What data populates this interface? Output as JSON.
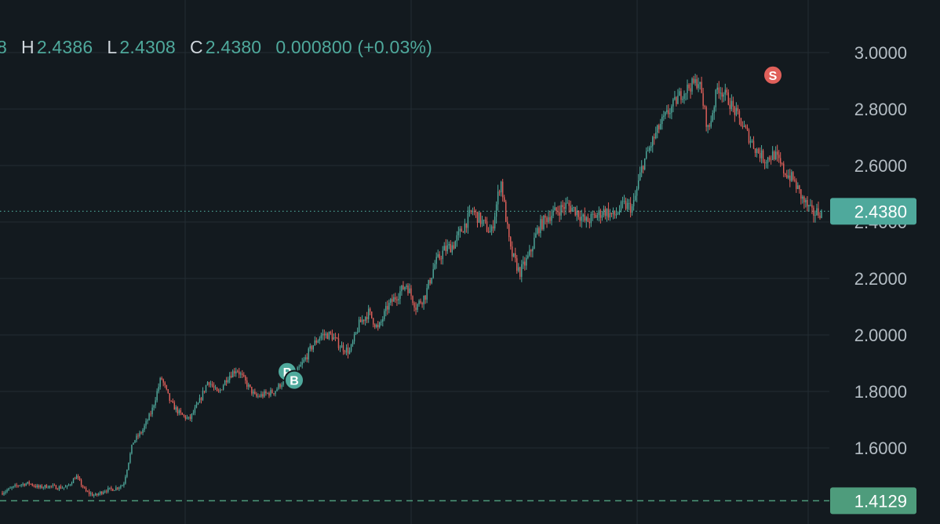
{
  "legend": {
    "open_value_tail": "8",
    "high_label": "H",
    "high_value": "2.4386",
    "low_label": "L",
    "low_value": "2.4308",
    "close_label": "C",
    "close_value": "2.4380",
    "change": "0.000800 (+0.03%)"
  },
  "price_axis": {
    "ticks": [
      "1.6000",
      "1.8000",
      "2.0000",
      "2.2000",
      "2.4000",
      "2.6000",
      "2.8000",
      "3.0000"
    ],
    "last_price_label": "2.4380",
    "reference_price_label": "1.4129"
  },
  "markers": [
    {
      "letter": "P",
      "price": 1.87
    },
    {
      "letter": "B",
      "price": 1.84
    },
    {
      "letter": "S",
      "price": 2.92
    }
  ],
  "colors": {
    "background": "#131a1f",
    "up": "#4fa99c",
    "down": "#e0605a",
    "grid": "#232c33",
    "axis_text": "#b4bdc4",
    "last_price_bg": "#4fa99c",
    "reference_bg": "#4e9c7c"
  },
  "chart_data": {
    "type": "candlestick",
    "y_scale": "linear",
    "ylim": [
      1.45,
      3.1
    ],
    "last_price": 2.438,
    "reference_price": 1.4129,
    "grid": true,
    "price_path": [
      1.44,
      1.455,
      1.47,
      1.475,
      1.46,
      1.465,
      1.46,
      1.46,
      1.5,
      1.445,
      1.43,
      1.45,
      1.455,
      1.47,
      1.62,
      1.66,
      1.73,
      1.85,
      1.76,
      1.72,
      1.7,
      1.76,
      1.84,
      1.79,
      1.85,
      1.88,
      1.83,
      1.78,
      1.79,
      1.8,
      1.84,
      1.85,
      1.9,
      1.96,
      2.0,
      2.0,
      1.96,
      1.94,
      2.04,
      2.08,
      2.02,
      2.1,
      2.14,
      2.18,
      2.1,
      2.14,
      2.25,
      2.3,
      2.32,
      2.38,
      2.44,
      2.4,
      2.36,
      2.55,
      2.3,
      2.22,
      2.28,
      2.38,
      2.42,
      2.44,
      2.46,
      2.44,
      2.4,
      2.42,
      2.44,
      2.42,
      2.46,
      2.45,
      2.6,
      2.68,
      2.75,
      2.8,
      2.85,
      2.88,
      2.9,
      2.72,
      2.88,
      2.84,
      2.78,
      2.72,
      2.66,
      2.62,
      2.64,
      2.58,
      2.55,
      2.48,
      2.43,
      2.438
    ]
  }
}
